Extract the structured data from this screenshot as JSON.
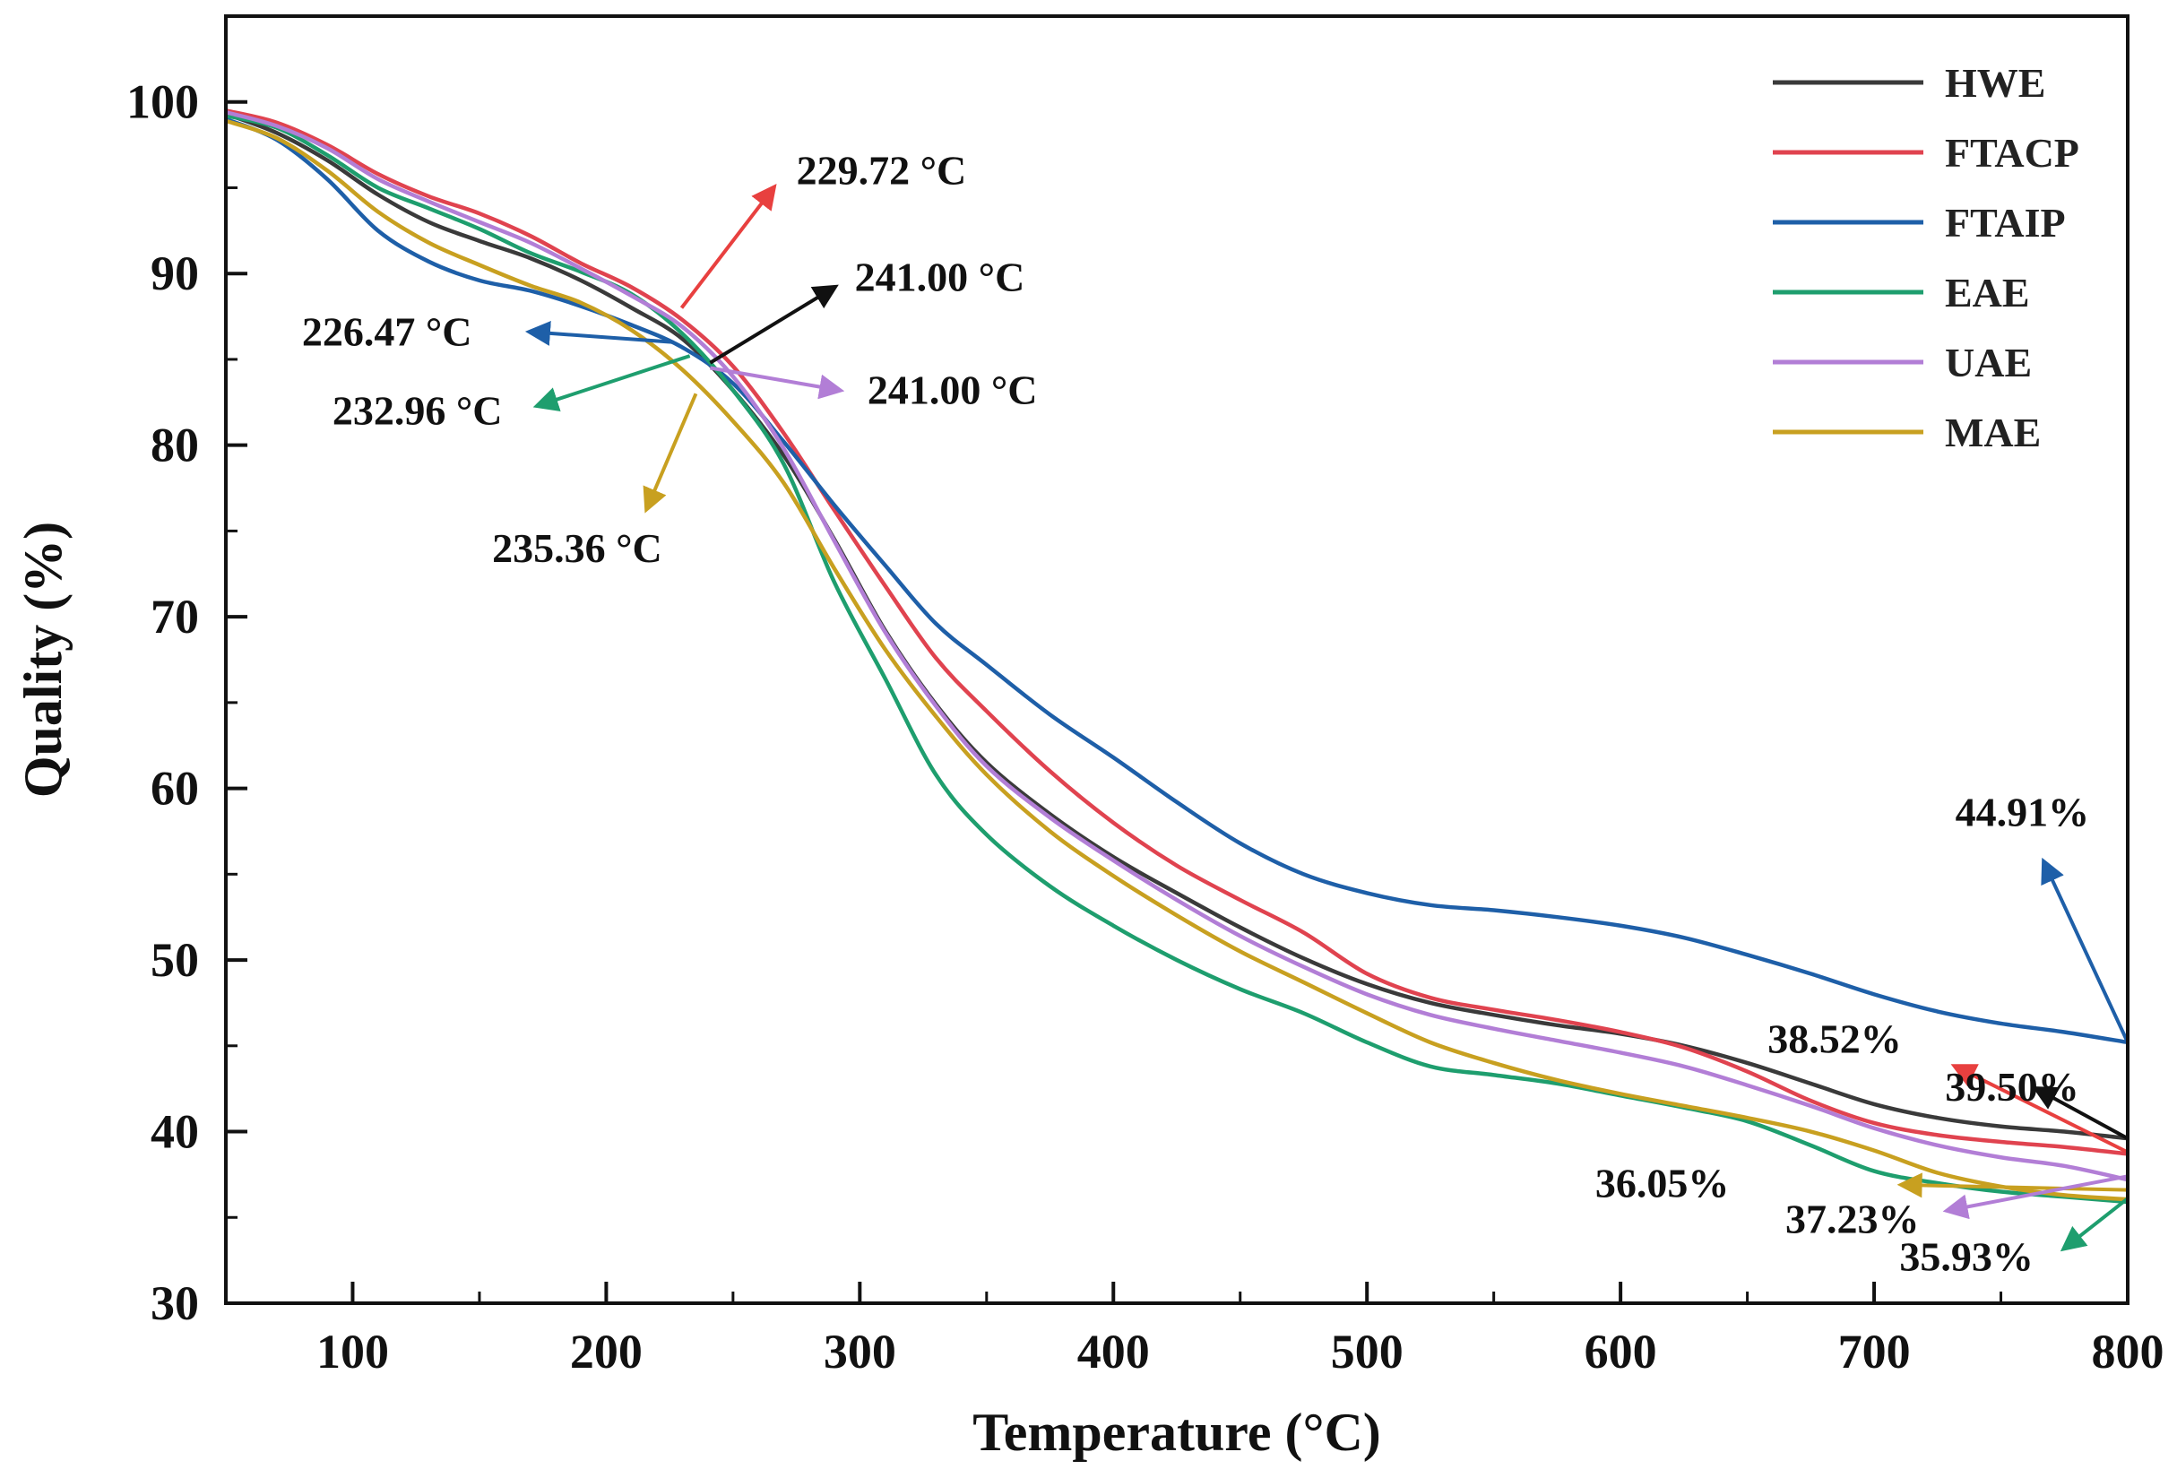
{
  "chart_data": {
    "type": "line",
    "title": "",
    "xlabel": "Temperature (°C)",
    "ylabel": "Quality (%)",
    "xlim": [
      50,
      800
    ],
    "ylim": [
      30,
      105
    ],
    "xticks": [
      100,
      200,
      300,
      400,
      500,
      600,
      700,
      800
    ],
    "yticks": [
      30,
      40,
      50,
      60,
      70,
      80,
      90,
      100
    ],
    "grid": false,
    "legend": "top-right",
    "series": [
      {
        "name": "HWE",
        "color": "#3a3a3a",
        "x": [
          50,
          70,
          90,
          110,
          130,
          150,
          170,
          190,
          210,
          230,
          250,
          270,
          290,
          310,
          330,
          350,
          375,
          400,
          425,
          450,
          475,
          500,
          525,
          550,
          575,
          600,
          625,
          650,
          675,
          700,
          725,
          750,
          775,
          800
        ],
        "y": [
          99.3,
          98.2,
          96.6,
          94.6,
          93.0,
          91.9,
          90.9,
          89.6,
          88.0,
          86.2,
          83.2,
          79.4,
          74.5,
          69.2,
          64.9,
          61.5,
          58.5,
          56.0,
          53.9,
          51.9,
          50.1,
          48.6,
          47.5,
          46.8,
          46.2,
          45.7,
          45.0,
          44.0,
          42.8,
          41.6,
          40.8,
          40.3,
          40.0,
          39.6
        ]
      },
      {
        "name": "FTACP",
        "color": "#e0434f",
        "x": [
          50,
          70,
          90,
          110,
          130,
          150,
          170,
          190,
          210,
          230,
          250,
          270,
          290,
          310,
          330,
          350,
          375,
          400,
          425,
          450,
          475,
          500,
          525,
          550,
          575,
          600,
          625,
          650,
          675,
          700,
          725,
          750,
          775,
          800
        ],
        "y": [
          99.5,
          98.8,
          97.5,
          95.8,
          94.5,
          93.5,
          92.2,
          90.6,
          89.2,
          87.3,
          84.6,
          80.7,
          76.2,
          71.8,
          67.6,
          64.5,
          61.0,
          58.0,
          55.5,
          53.5,
          51.6,
          49.2,
          47.8,
          47.1,
          46.5,
          45.8,
          44.9,
          43.5,
          41.8,
          40.5,
          39.8,
          39.4,
          39.1,
          38.7
        ]
      },
      {
        "name": "FTAIP",
        "color": "#1e5fa8",
        "x": [
          50,
          70,
          90,
          110,
          130,
          150,
          170,
          190,
          210,
          230,
          250,
          270,
          290,
          310,
          330,
          350,
          375,
          400,
          425,
          450,
          475,
          500,
          525,
          550,
          575,
          600,
          625,
          650,
          675,
          700,
          725,
          750,
          775,
          800
        ],
        "y": [
          99.0,
          97.8,
          95.5,
          92.5,
          90.7,
          89.6,
          89.0,
          88.1,
          87.0,
          85.7,
          83.6,
          80.2,
          76.5,
          73.0,
          69.6,
          67.2,
          64.3,
          61.8,
          59.2,
          56.8,
          55.0,
          53.9,
          53.2,
          52.9,
          52.5,
          52.0,
          51.3,
          50.3,
          49.2,
          48.0,
          47.0,
          46.3,
          45.8,
          45.2
        ]
      },
      {
        "name": "EAE",
        "color": "#1e9e6e",
        "x": [
          50,
          70,
          90,
          110,
          130,
          150,
          170,
          190,
          210,
          230,
          250,
          270,
          290,
          310,
          330,
          350,
          375,
          400,
          425,
          450,
          475,
          500,
          525,
          550,
          575,
          600,
          625,
          650,
          675,
          700,
          725,
          750,
          775,
          800
        ],
        "y": [
          99.2,
          98.5,
          96.9,
          95.0,
          93.8,
          92.6,
          91.2,
          90.1,
          88.8,
          86.5,
          83.2,
          78.9,
          72.0,
          66.4,
          60.8,
          57.3,
          54.3,
          52.0,
          50.0,
          48.3,
          46.9,
          45.2,
          43.8,
          43.3,
          42.8,
          42.1,
          41.4,
          40.6,
          39.2,
          37.7,
          37.0,
          36.5,
          36.2,
          35.9
        ]
      },
      {
        "name": "UAE",
        "color": "#b27ed6",
        "x": [
          50,
          70,
          90,
          110,
          130,
          150,
          170,
          190,
          210,
          230,
          250,
          270,
          290,
          310,
          330,
          350,
          375,
          400,
          425,
          450,
          475,
          500,
          525,
          550,
          575,
          600,
          625,
          650,
          675,
          700,
          725,
          750,
          775,
          800
        ],
        "y": [
          99.4,
          98.6,
          97.3,
          95.5,
          94.2,
          93.0,
          91.8,
          90.3,
          88.7,
          86.9,
          84.0,
          79.8,
          74.4,
          69.1,
          64.8,
          61.3,
          58.3,
          55.8,
          53.5,
          51.4,
          49.6,
          48.0,
          46.8,
          46.0,
          45.3,
          44.6,
          43.8,
          42.7,
          41.5,
          40.2,
          39.2,
          38.5,
          38.0,
          37.2
        ]
      },
      {
        "name": "MAE",
        "color": "#c8a020",
        "x": [
          50,
          70,
          90,
          110,
          130,
          150,
          170,
          190,
          210,
          230,
          250,
          270,
          290,
          310,
          330,
          350,
          375,
          400,
          425,
          450,
          475,
          500,
          525,
          550,
          575,
          600,
          625,
          650,
          675,
          700,
          725,
          750,
          775,
          800
        ],
        "y": [
          98.9,
          97.9,
          96.0,
          93.6,
          91.8,
          90.5,
          89.3,
          88.3,
          86.7,
          84.4,
          81.4,
          77.8,
          72.8,
          68.1,
          64.2,
          60.8,
          57.5,
          54.9,
          52.6,
          50.5,
          48.7,
          46.9,
          45.2,
          44.0,
          43.0,
          42.2,
          41.5,
          40.8,
          40.0,
          38.9,
          37.6,
          36.8,
          36.3,
          36.05
        ]
      }
    ],
    "annotations": [
      {
        "text": "229.72 °C",
        "color": "#e8403f",
        "from": [
          229.72,
          88.0
        ],
        "to": [
          266,
          95.0
        ],
        "label": [
          275,
          95.2
        ]
      },
      {
        "text": "241.00 °C",
        "color": "#111111",
        "from": [
          241.0,
          84.8
        ],
        "to": [
          290,
          89.2
        ],
        "label": [
          298,
          89.0
        ]
      },
      {
        "text": "226.47 °C",
        "color": "#1e5fa8",
        "from": [
          226.47,
          86.0
        ],
        "to": [
          170,
          86.6
        ],
        "label": [
          80,
          85.8
        ]
      },
      {
        "text": "241.00 °C",
        "color": "#b27ed6",
        "from": [
          241.0,
          84.5
        ],
        "to": [
          292,
          83.2
        ],
        "label": [
          303,
          82.4
        ]
      },
      {
        "text": "232.96 °C",
        "color": "#1e9e6e",
        "from": [
          232.96,
          85.2
        ],
        "to": [
          173,
          82.3
        ],
        "label": [
          92,
          81.2
        ]
      },
      {
        "text": "235.36 °C",
        "color": "#c8a020",
        "from": [
          235.36,
          83.0
        ],
        "to": [
          216,
          76.3
        ],
        "label": [
          155,
          73.2
        ]
      },
      {
        "text": "44.91%",
        "color": "#1e5fa8",
        "from": [
          800,
          45.2
        ],
        "to": [
          767,
          55.7
        ],
        "label": [
          732,
          57.8
        ]
      },
      {
        "text": "38.52%",
        "color": "#e8403f",
        "from": [
          800,
          38.8
        ],
        "to": [
          732,
          43.8
        ],
        "label": [
          658,
          44.6
        ]
      },
      {
        "text": "39.50%",
        "color": "#111111",
        "from": [
          800,
          39.6
        ],
        "to": [
          764,
          42.5
        ],
        "label": [
          728,
          41.8
        ]
      },
      {
        "text": "36.05%",
        "color": "#c8a020",
        "from": [
          800,
          36.6
        ],
        "to": [
          711,
          36.9
        ],
        "label": [
          590,
          36.2
        ]
      },
      {
        "text": "37.23%",
        "color": "#b27ed6",
        "from": [
          800,
          37.4
        ],
        "to": [
          729,
          35.4
        ],
        "label": [
          665,
          34.1
        ]
      },
      {
        "text": "35.93%",
        "color": "#1e9e6e",
        "from": [
          800,
          36.1
        ],
        "to": [
          775,
          33.2
        ],
        "label": [
          710,
          31.9
        ]
      }
    ]
  }
}
